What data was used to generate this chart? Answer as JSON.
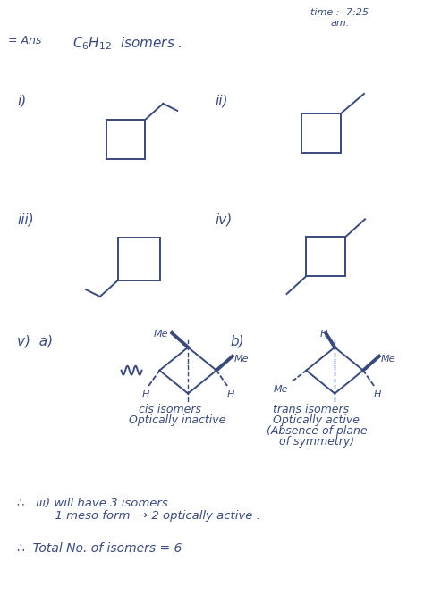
{
  "bg_color": "#ffffff",
  "ink_color": "#3a4a7a",
  "timestamp_line1": "time :- 7:25",
  "timestamp_line2": "am.",
  "heading_ans": "= Ans",
  "heading_formula": "C$_6$H$_{12}$  isomers .",
  "label_i": "i)",
  "label_ii": "ii)",
  "label_iii": "iii)",
  "label_iv": "iv)",
  "label_v": "v)  a)",
  "label_b": "b)",
  "cis_line1": "cis isomers",
  "cis_line2": "Optically inactive",
  "trans_line1": "trans isomers",
  "trans_line2": "Optically active",
  "trans_line3": "(Absence of plane",
  "trans_line4": "of symmetry)",
  "concl1": "∴   iii) will have 3 isomers",
  "concl2": "          1 meso form  → 2 optically active .",
  "concl3": "∴  Total No. of isomers = 6"
}
